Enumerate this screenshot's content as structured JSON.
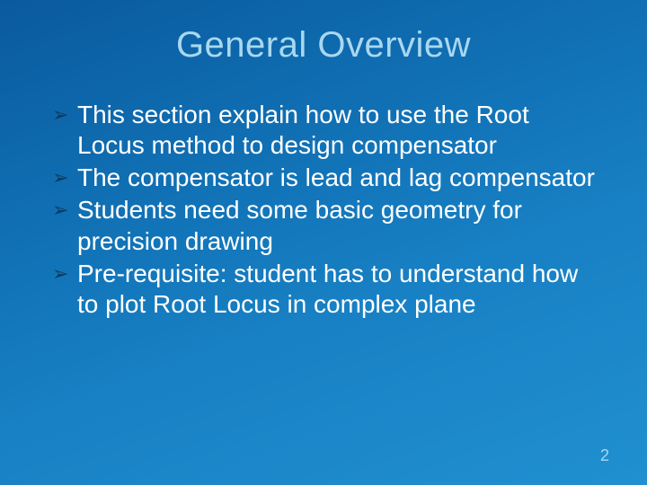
{
  "slide": {
    "title": "General Overview",
    "bullets": [
      "This section explain how to use the Root Locus method to design compensator",
      "The compensator is lead and lag compensator",
      "Students need some basic geometry for precision drawing",
      "Pre-requisite: student has to understand how to plot Root Locus in complex plane"
    ],
    "page_number": "2"
  },
  "style": {
    "background_gradient": [
      "#0a5a9e",
      "#1274b8",
      "#1880c4",
      "#2090d0"
    ],
    "title_color": "#a8d8f0",
    "title_fontsize": 40,
    "body_color": "#ffffff",
    "body_fontsize": 28,
    "bullet_marker_color": "#0a3a5e",
    "page_num_color": "#a8d8f0",
    "page_num_fontsize": 18,
    "font_family": "Arial"
  }
}
